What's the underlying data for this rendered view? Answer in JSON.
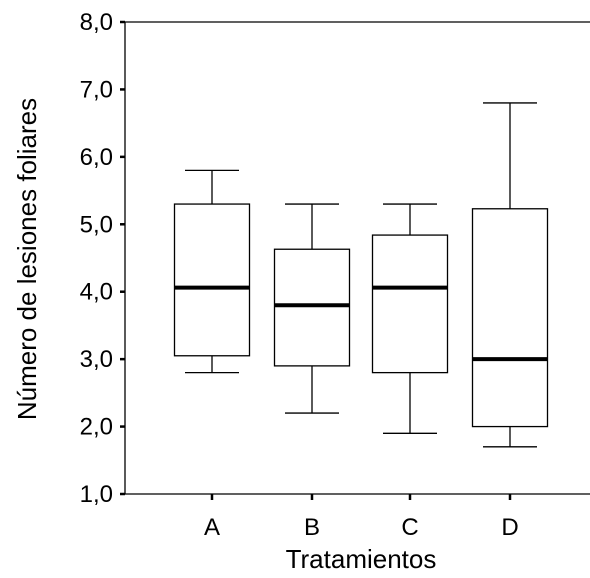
{
  "chart_data": {
    "type": "boxplot",
    "title": "",
    "xlabel": "Tratamientos",
    "ylabel": "Número de lesiones foliares",
    "ylim": [
      1.0,
      8.0
    ],
    "yticks": [
      "1,0",
      "2,0",
      "3,0",
      "4,0",
      "5,0",
      "6,0",
      "7,0",
      "8,0"
    ],
    "ytick_values": [
      1.0,
      2.0,
      3.0,
      4.0,
      5.0,
      6.0,
      7.0,
      8.0
    ],
    "categories": [
      "A",
      "B",
      "C",
      "D"
    ],
    "boxes": [
      {
        "category": "A",
        "min": 2.8,
        "q1": 3.05,
        "median": 4.06,
        "q3": 5.3,
        "max": 5.8
      },
      {
        "category": "B",
        "min": 2.2,
        "q1": 2.9,
        "median": 3.8,
        "q3": 4.63,
        "max": 5.3
      },
      {
        "category": "C",
        "min": 1.9,
        "q1": 2.8,
        "median": 4.06,
        "q3": 4.84,
        "max": 5.3
      },
      {
        "category": "D",
        "min": 1.7,
        "q1": 2.0,
        "median": 3.0,
        "q3": 5.23,
        "max": 6.8
      }
    ],
    "grid": false,
    "legend": "none"
  }
}
